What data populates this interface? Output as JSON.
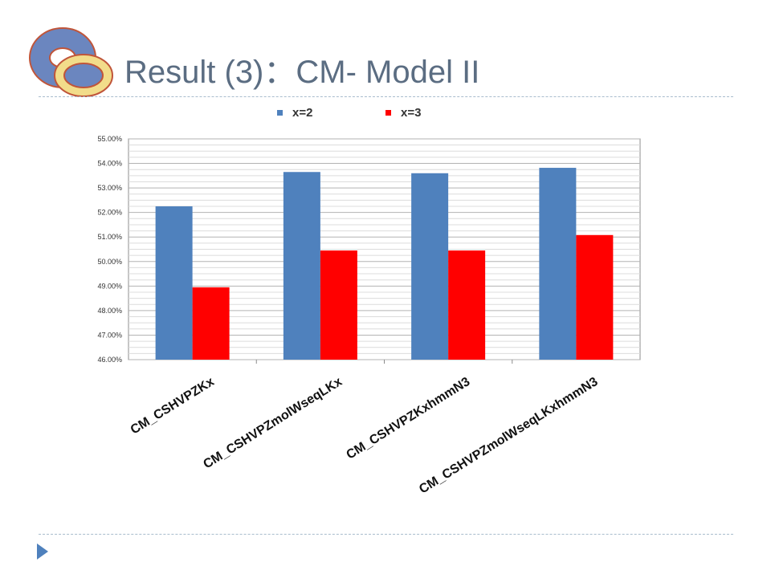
{
  "slide": {
    "title": "Result (3)：CM- Model II",
    "logo_icon": "ring-logo-icon",
    "bullet_icon": "triangle-bullet-icon"
  },
  "colors": {
    "title": "#5b6d82",
    "rule": "#a9bccd",
    "series_x2": "#4f81bd",
    "series_x3": "#ff0000",
    "logo_outer": "#6b86bf",
    "logo_inner": "#f2dc8a",
    "logo_stroke": "#c0553a"
  },
  "chart_data": {
    "type": "bar",
    "categories": [
      "CM_CSHVPZKx",
      "CM_CSHVPZmolWseqLKx",
      "CM_CSHVPZKxhmmN3",
      "CM_CSHVPZmolWseqLKxhmmN3"
    ],
    "series": [
      {
        "name": "x=2",
        "values": [
          52.25,
          53.65,
          53.6,
          53.82
        ],
        "color": "#4f81bd"
      },
      {
        "name": "x=3",
        "values": [
          48.95,
          50.45,
          50.45,
          51.08
        ],
        "color": "#ff0000"
      }
    ],
    "yticks": [
      "46.00%",
      "47.00%",
      "48.00%",
      "49.00%",
      "50.00%",
      "51.00%",
      "52.00%",
      "53.00%",
      "54.00%",
      "55.00%"
    ],
    "ylim": [
      46,
      55
    ],
    "y_unit": "%",
    "grid": true,
    "legend_position": "top-center"
  }
}
